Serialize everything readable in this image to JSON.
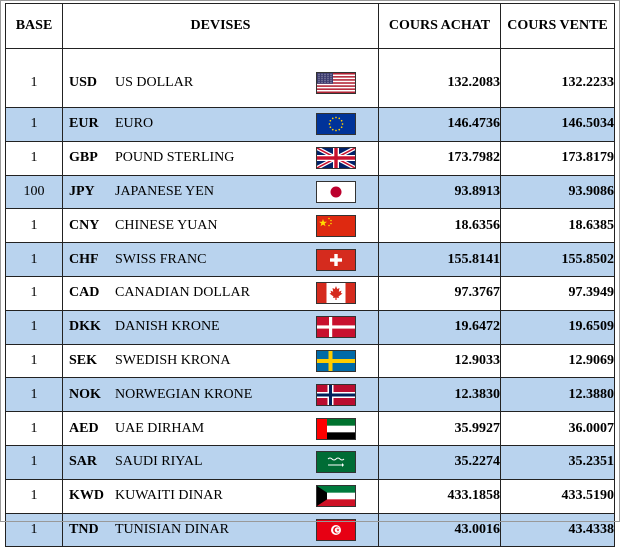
{
  "headers": {
    "base": "BASE",
    "devises": "DEVISES",
    "cours_achat": "COURS ACHAT",
    "cours_vente": "COURS VENTE"
  },
  "rows": [
    {
      "base": "1",
      "code": "USD",
      "name": "US DOLLAR",
      "flag": "flag-usa-icon",
      "achat": "132.2083",
      "vente": "132.2233"
    },
    {
      "base": "1",
      "code": "EUR",
      "name": "EURO",
      "flag": "flag-eu-icon",
      "achat": "146.4736",
      "vente": "146.5034"
    },
    {
      "base": "1",
      "code": "GBP",
      "name": "POUND STERLING",
      "flag": "flag-uk-icon",
      "achat": "173.7982",
      "vente": "173.8179"
    },
    {
      "base": "100",
      "code": "JPY",
      "name": "JAPANESE YEN",
      "flag": "flag-japan-icon",
      "achat": "93.8913",
      "vente": "93.9086"
    },
    {
      "base": "1",
      "code": "CNY",
      "name": "CHINESE YUAN",
      "flag": "flag-china-icon",
      "achat": "18.6356",
      "vente": "18.6385"
    },
    {
      "base": "1",
      "code": "CHF",
      "name": "SWISS FRANC",
      "flag": "flag-switzerland-icon",
      "achat": "155.8141",
      "vente": "155.8502"
    },
    {
      "base": "1",
      "code": "CAD",
      "name": "CANADIAN DOLLAR",
      "flag": "flag-canada-icon",
      "achat": "97.3767",
      "vente": "97.3949"
    },
    {
      "base": "1",
      "code": "DKK",
      "name": "DANISH KRONE",
      "flag": "flag-denmark-icon",
      "achat": "19.6472",
      "vente": "19.6509"
    },
    {
      "base": "1",
      "code": "SEK",
      "name": "SWEDISH KRONA",
      "flag": "flag-sweden-icon",
      "achat": "12.9033",
      "vente": "12.9069"
    },
    {
      "base": "1",
      "code": "NOK",
      "name": "NORWEGIAN KRONE",
      "flag": "flag-norway-icon",
      "achat": "12.3830",
      "vente": "12.3880"
    },
    {
      "base": "1",
      "code": "AED",
      "name": "UAE DIRHAM",
      "flag": "flag-uae-icon",
      "achat": "35.9927",
      "vente": "36.0007"
    },
    {
      "base": "1",
      "code": "SAR",
      "name": "SAUDI RIYAL",
      "flag": "flag-saudi-icon",
      "achat": "35.2274",
      "vente": "35.2351"
    },
    {
      "base": "1",
      "code": "KWD",
      "name": "KUWAITI DINAR",
      "flag": "flag-kuwait-icon",
      "achat": "433.1858",
      "vente": "433.5190"
    },
    {
      "base": "1",
      "code": "TND",
      "name": "TUNISIAN DINAR",
      "flag": "flag-tunisia-icon",
      "achat": "43.0016",
      "vente": "43.4338"
    }
  ],
  "colors": {
    "alt_row": "#b9d3ee",
    "border": "#222222"
  }
}
